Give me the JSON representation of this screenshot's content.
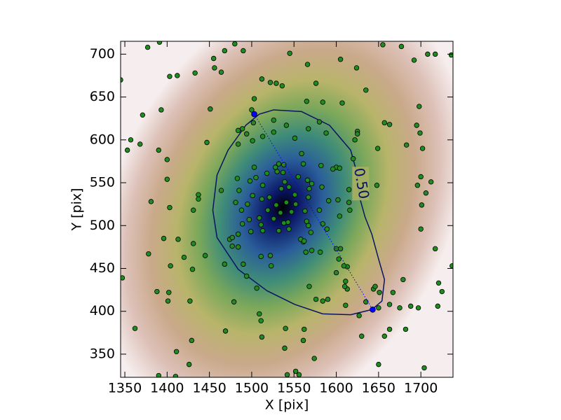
{
  "chart_data": {
    "type": "scatter",
    "xlabel": "X [pix]",
    "ylabel": "Y [pix]",
    "xlim": [
      1345,
      1738
    ],
    "ylim": [
      323,
      715
    ],
    "xticks": [
      1350,
      1400,
      1450,
      1500,
      1550,
      1600,
      1650,
      1700
    ],
    "yticks": [
      350,
      400,
      450,
      500,
      550,
      600,
      650,
      700
    ],
    "series": [
      {
        "color": "#1e8c1e",
        "x": [
          1345,
          1377,
          1391,
          1412,
          1403,
          1393,
          1371,
          1357,
          1353,
          1368,
          1390,
          1400,
          1400,
          1381,
          1403,
          1404,
          1378,
          1388,
          1401,
          1402,
          1347,
          1362,
          1411,
          1426,
          1390,
          1410,
          1429,
          1427,
          1420,
          1396,
          1413,
          1431,
          1430,
          1437,
          1437,
          1431,
          1445,
          1447,
          1451,
          1433,
          1455,
          1468,
          1480,
          1464,
          1490,
          1456,
          1468,
          1469,
          1479,
          1484,
          1490,
          1494,
          1489,
          1474,
          1477,
          1499,
          1509,
          1511,
          1512,
          1506,
          1523,
          1511,
          1522,
          1532,
          1540,
          1539,
          1542,
          1556,
          1552,
          1561,
          1562,
          1574,
          1576,
          1568,
          1584,
          1590,
          1600,
          1600,
          1613,
          1609,
          1603,
          1605,
          1613,
          1611,
          1610,
          1611,
          1627,
          1635,
          1630,
          1644,
          1651,
          1646,
          1650,
          1663,
          1650,
          1657,
          1663,
          1667,
          1675,
          1682,
          1688,
          1697,
          1721,
          1720,
          1725,
          1737,
          1679,
          1704,
          1700,
          1701,
          1706,
          1696,
          1700,
          1702,
          1683,
          1699,
          1695,
          1698,
          1712,
          1717,
          1708,
          1717,
          1736,
          1677,
          1655,
          1692,
          1605,
          1624,
          1635,
          1607,
          1657,
          1663,
          1625,
          1625,
          1649,
          1648,
          1615,
          1615,
          1616,
          1584,
          1576,
          1566,
          1545,
          1565,
          1536,
          1529,
          1522,
          1512,
          1503,
          1500,
          1502,
          1484,
          1489,
          1484,
          1494,
          1501,
          1513,
          1526,
          1526,
          1551,
          1541,
          1559,
          1561,
          1582,
          1567,
          1580,
          1588,
          1600,
          1622,
          1620,
          1604,
          1602,
          1604,
          1591,
          1589,
          1584,
          1580,
          1568,
          1567,
          1563,
          1567,
          1570,
          1565,
          1561,
          1558,
          1552,
          1544,
          1543,
          1538,
          1539,
          1544,
          1555,
          1551,
          1538,
          1530,
          1518,
          1528,
          1532,
          1503,
          1505,
          1498,
          1483,
          1488,
          1495,
          1501,
          1509,
          1511,
          1513,
          1484,
          1497,
          1485,
          1481,
          1464,
          1477,
          1519,
          1526,
          1534,
          1547,
          1541,
          1529,
          1537,
          1513,
          1521,
          1512,
          1535,
          1566,
          1571,
          1583,
          1596,
          1562,
          1571,
          1581,
          1564
        ],
        "y": [
          670,
          708,
          714,
          675,
          674,
          635,
          629,
          600,
          588,
          595,
          588,
          577,
          554,
          528,
          521,
          453,
          467,
          423,
          412,
          422,
          439,
          380,
          353,
          338,
          325,
          324,
          366,
          412,
          463,
          485,
          484,
          479,
          449,
          536,
          531,
          518,
          465,
          597,
          636,
          678,
          695,
          704,
          712,
          679,
          704,
          684,
          455,
          377,
          411,
          475,
          455,
          441,
          502,
          484,
          476,
          493,
          397,
          389,
          370,
          427,
          453,
          464,
          465,
          494,
          380,
          357,
          326,
          326,
          330,
          366,
          379,
          345,
          414,
          429,
          412,
          414,
          473,
          445,
          452,
          453,
          461,
          473,
          426,
          435,
          429,
          407,
          395,
          411,
          371,
          426,
          422,
          429,
          404,
          408,
          338,
          371,
          379,
          422,
          404,
          379,
          406,
          404,
          433,
          406,
          423,
          453,
          437,
          334,
          496,
          524,
          538,
          547,
          557,
          590,
          594,
          608,
          617,
          639,
          551,
          473,
          700,
          700,
          699,
          709,
          711,
          693,
          694,
          684,
          658,
          643,
          620,
          618,
          610,
          607,
          590,
          547,
          542,
          527,
          518,
          644,
          666,
          688,
          701,
          645,
          663,
          666,
          667,
          671,
          648,
          635,
          620,
          611,
          613,
          595,
          607,
          599,
          604,
          609,
          623,
          602,
          617,
          584,
          572,
          570,
          613,
          621,
          608,
          568,
          600,
          578,
          567,
          530,
          511,
          529,
          496,
          502,
          518,
          543,
          533,
          517,
          500,
          492,
          505,
          481,
          484,
          525,
          496,
          504,
          503,
          551,
          545,
          557,
          536,
          571,
          563,
          561,
          568,
          572,
          568,
          556,
          552,
          555,
          518,
          525,
          535,
          509,
          501,
          494,
          490,
          507,
          541,
          527,
          541,
          486,
          518,
          508,
          515,
          516,
          527,
          524,
          562,
          547,
          533,
          531,
          543,
          553,
          549,
          545,
          566,
          482,
          471,
          469,
          469
        ]
      }
    ],
    "markers": {
      "color": "#0000ff",
      "x": [
        1503,
        1643
      ],
      "y": [
        630,
        402
      ]
    },
    "contour": {
      "label": "0.50",
      "color": "#0a1464",
      "x": [
        1526,
        1559,
        1592,
        1617,
        1624,
        1627,
        1634,
        1642,
        1650,
        1657,
        1654,
        1642,
        1617,
        1584,
        1551,
        1518,
        1484,
        1459,
        1454,
        1459,
        1472,
        1493,
        1509
      ],
      "y": [
        635,
        633,
        617,
        588,
        563,
        535,
        510,
        490,
        461,
        437,
        412,
        402,
        396,
        397,
        408,
        424,
        449,
        486,
        518,
        559,
        588,
        617,
        630
      ]
    }
  }
}
